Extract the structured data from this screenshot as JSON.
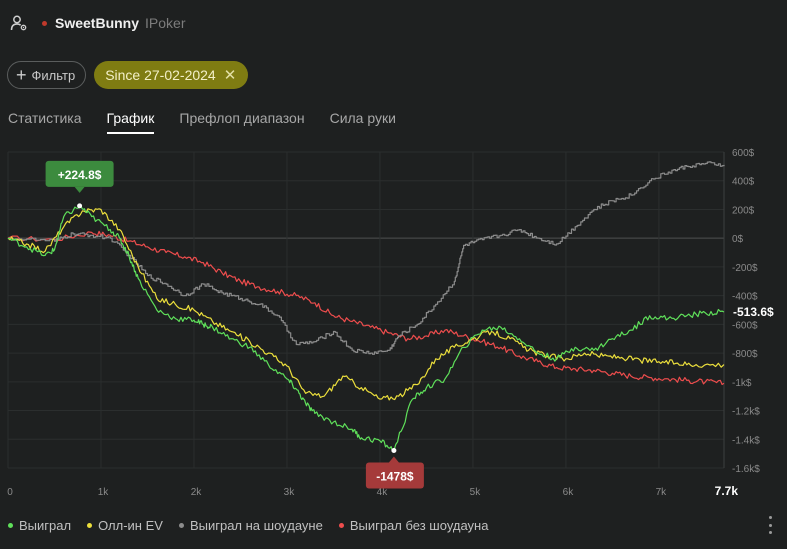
{
  "header": {
    "username": "SweetBunny",
    "room": "IPoker"
  },
  "filters": {
    "filter_label": "Фильтр",
    "date_chip": "Since 27-02-2024"
  },
  "tabs": [
    {
      "label": "Статистика",
      "active": false
    },
    {
      "label": "График",
      "active": true
    },
    {
      "label": "Префлоп диапазон",
      "active": false
    },
    {
      "label": "Сила руки",
      "active": false
    }
  ],
  "colors": {
    "won": "#5fe05a",
    "allin_ev": "#ecdf3c",
    "showdown": "#8c8c8c",
    "no_showdown": "#ee4d4d",
    "max_badge": "#3c8b3e",
    "min_badge": "#a53a3a"
  },
  "chart_data": {
    "type": "line",
    "x_ticks": [
      "0",
      "1k",
      "2k",
      "3k",
      "4k",
      "5k",
      "6k",
      "7k"
    ],
    "x_end_label": "7.7k",
    "xlim": [
      0,
      7700
    ],
    "y_ticks": [
      "600$",
      "400$",
      "200$",
      "0$",
      "-200$",
      "-400$",
      "-600$",
      "-800$",
      "-1k$",
      "-1.2k$",
      "-1.4k$",
      "-1.6k$"
    ],
    "ylim": [
      -1600,
      600
    ],
    "max_annotation": {
      "label": "+224.8$",
      "x": 770,
      "y": 224.8
    },
    "min_annotation": {
      "label": "-1478$",
      "x": 4150,
      "y": -1478
    },
    "final_label": "-513.6$",
    "series": [
      {
        "name": "Выиграл",
        "key": "won",
        "points": [
          [
            0,
            0
          ],
          [
            200,
            -60
          ],
          [
            400,
            -120
          ],
          [
            500,
            -80
          ],
          [
            600,
            150
          ],
          [
            770,
            225
          ],
          [
            900,
            150
          ],
          [
            1100,
            60
          ],
          [
            1200,
            0
          ],
          [
            1300,
            -120
          ],
          [
            1400,
            -280
          ],
          [
            1600,
            -500
          ],
          [
            1800,
            -560
          ],
          [
            2000,
            -570
          ],
          [
            2100,
            -600
          ],
          [
            2200,
            -620
          ],
          [
            2400,
            -700
          ],
          [
            2600,
            -760
          ],
          [
            2800,
            -880
          ],
          [
            3000,
            -980
          ],
          [
            3100,
            -1050
          ],
          [
            3200,
            -1150
          ],
          [
            3300,
            -1220
          ],
          [
            3500,
            -1280
          ],
          [
            3700,
            -1330
          ],
          [
            3800,
            -1390
          ],
          [
            4000,
            -1410
          ],
          [
            4150,
            -1478
          ],
          [
            4350,
            -1120
          ],
          [
            4500,
            -1040
          ],
          [
            4700,
            -980
          ],
          [
            4900,
            -760
          ],
          [
            5100,
            -640
          ],
          [
            5300,
            -620
          ],
          [
            5500,
            -700
          ],
          [
            5700,
            -800
          ],
          [
            5900,
            -840
          ],
          [
            6100,
            -760
          ],
          [
            6300,
            -780
          ],
          [
            6500,
            -700
          ],
          [
            6700,
            -640
          ],
          [
            6900,
            -540
          ],
          [
            7100,
            -560
          ],
          [
            7300,
            -540
          ],
          [
            7500,
            -520
          ],
          [
            7700,
            -513.6
          ]
        ]
      },
      {
        "name": "Олл-ин EV",
        "key": "allin_ev",
        "points": [
          [
            0,
            0
          ],
          [
            200,
            -40
          ],
          [
            400,
            -90
          ],
          [
            600,
            80
          ],
          [
            800,
            190
          ],
          [
            1000,
            200
          ],
          [
            1200,
            60
          ],
          [
            1400,
            -200
          ],
          [
            1600,
            -420
          ],
          [
            1800,
            -460
          ],
          [
            2000,
            -500
          ],
          [
            2200,
            -580
          ],
          [
            2400,
            -650
          ],
          [
            2600,
            -720
          ],
          [
            2800,
            -800
          ],
          [
            3000,
            -890
          ],
          [
            3200,
            -1080
          ],
          [
            3400,
            -1100
          ],
          [
            3600,
            -960
          ],
          [
            3800,
            -1040
          ],
          [
            4000,
            -1120
          ],
          [
            4200,
            -1100
          ],
          [
            4400,
            -1020
          ],
          [
            4600,
            -840
          ],
          [
            4800,
            -760
          ],
          [
            5000,
            -700
          ],
          [
            5200,
            -650
          ],
          [
            5400,
            -700
          ],
          [
            5600,
            -780
          ],
          [
            5800,
            -820
          ],
          [
            6000,
            -840
          ],
          [
            6200,
            -800
          ],
          [
            6400,
            -820
          ],
          [
            6600,
            -830
          ],
          [
            6800,
            -850
          ],
          [
            7000,
            -860
          ],
          [
            7200,
            -870
          ],
          [
            7400,
            -880
          ],
          [
            7700,
            -880
          ]
        ]
      },
      {
        "name": "Выиграл на шоудауне",
        "key": "showdown",
        "points": [
          [
            0,
            0
          ],
          [
            500,
            -20
          ],
          [
            700,
            30
          ],
          [
            900,
            20
          ],
          [
            1100,
            0
          ],
          [
            1300,
            -120
          ],
          [
            1500,
            -260
          ],
          [
            1700,
            -320
          ],
          [
            1900,
            -400
          ],
          [
            2100,
            -320
          ],
          [
            2300,
            -380
          ],
          [
            2500,
            -420
          ],
          [
            2700,
            -460
          ],
          [
            2900,
            -540
          ],
          [
            3100,
            -740
          ],
          [
            3300,
            -720
          ],
          [
            3500,
            -650
          ],
          [
            3700,
            -780
          ],
          [
            3900,
            -800
          ],
          [
            4100,
            -780
          ],
          [
            4200,
            -680
          ],
          [
            4400,
            -600
          ],
          [
            4600,
            -460
          ],
          [
            4800,
            -300
          ],
          [
            4900,
            -50
          ],
          [
            5100,
            -10
          ],
          [
            5300,
            20
          ],
          [
            5500,
            60
          ],
          [
            5700,
            0
          ],
          [
            5900,
            -40
          ],
          [
            6100,
            80
          ],
          [
            6300,
            200
          ],
          [
            6500,
            260
          ],
          [
            6700,
            300
          ],
          [
            6900,
            400
          ],
          [
            7100,
            460
          ],
          [
            7300,
            500
          ],
          [
            7500,
            520
          ],
          [
            7700,
            510
          ]
        ]
      },
      {
        "name": "Выиграл без шоудауна",
        "key": "no_showdown",
        "points": [
          [
            0,
            0
          ],
          [
            500,
            -10
          ],
          [
            900,
            40
          ],
          [
            1100,
            20
          ],
          [
            1300,
            -20
          ],
          [
            1500,
            -60
          ],
          [
            1700,
            -100
          ],
          [
            1900,
            -130
          ],
          [
            2100,
            -170
          ],
          [
            2300,
            -240
          ],
          [
            2500,
            -300
          ],
          [
            2700,
            -340
          ],
          [
            2900,
            -370
          ],
          [
            3100,
            -400
          ],
          [
            3300,
            -450
          ],
          [
            3500,
            -540
          ],
          [
            3700,
            -580
          ],
          [
            3900,
            -620
          ],
          [
            4100,
            -660
          ],
          [
            4300,
            -700
          ],
          [
            4500,
            -680
          ],
          [
            4700,
            -640
          ],
          [
            4900,
            -680
          ],
          [
            5100,
            -720
          ],
          [
            5300,
            -760
          ],
          [
            5500,
            -820
          ],
          [
            5700,
            -860
          ],
          [
            5900,
            -900
          ],
          [
            6100,
            -910
          ],
          [
            6300,
            -920
          ],
          [
            6500,
            -940
          ],
          [
            6700,
            -960
          ],
          [
            6900,
            -970
          ],
          [
            7100,
            -980
          ],
          [
            7300,
            -990
          ],
          [
            7500,
            -1000
          ],
          [
            7700,
            -1010
          ]
        ]
      }
    ]
  }
}
